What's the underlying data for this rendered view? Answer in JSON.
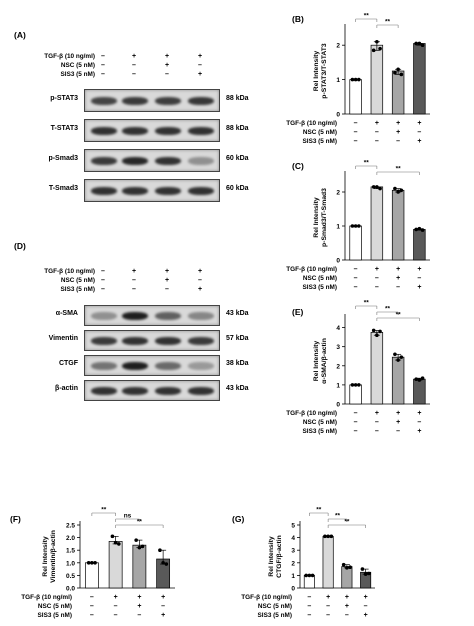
{
  "panels": {
    "A": {
      "label": "(A)",
      "treatments": [
        "TGF-β (10 ng/ml)",
        "NSC (5 nM)",
        "SIS3 (5 nM)"
      ],
      "signs": [
        [
          "–",
          "+",
          "+",
          "+"
        ],
        [
          "–",
          "–",
          "+",
          "–"
        ],
        [
          "–",
          "–",
          "–",
          "+"
        ]
      ],
      "blots": [
        {
          "name": "p-STAT3",
          "kda": "88 kDa",
          "intensity": [
            0.75,
            0.8,
            0.78,
            0.82
          ]
        },
        {
          "name": "T-STAT3",
          "kda": "88 kDa",
          "intensity": [
            0.85,
            0.85,
            0.85,
            0.85
          ]
        },
        {
          "name": "p-Smad3",
          "kda": "60 kDa",
          "intensity": [
            0.8,
            0.9,
            0.85,
            0.35
          ]
        },
        {
          "name": "T-Smad3",
          "kda": "60 kDa",
          "intensity": [
            0.85,
            0.85,
            0.85,
            0.85
          ]
        }
      ]
    },
    "D": {
      "label": "(D)",
      "treatments": [
        "TGF-β (10 ng/ml)",
        "NSC (5 nM)",
        "SIS3 (5 nM)"
      ],
      "signs": [
        [
          "–",
          "+",
          "+",
          "+"
        ],
        [
          "–",
          "–",
          "+",
          "–"
        ],
        [
          "–",
          "–",
          "–",
          "+"
        ]
      ],
      "blots": [
        {
          "name": "α-SMA",
          "kda": "43 kDa",
          "intensity": [
            0.35,
            0.95,
            0.6,
            0.4
          ]
        },
        {
          "name": "Vimentin",
          "kda": "57 kDa",
          "intensity": [
            0.8,
            0.85,
            0.85,
            0.8
          ]
        },
        {
          "name": "CTGF",
          "kda": "38 kDa",
          "intensity": [
            0.5,
            0.95,
            0.55,
            0.3
          ]
        },
        {
          "name": "β-actin",
          "kda": "43 kDa",
          "intensity": [
            0.85,
            0.85,
            0.85,
            0.85
          ]
        }
      ]
    }
  },
  "chart_data": [
    {
      "id": "B",
      "panel_label": "(B)",
      "type": "bar",
      "ylabel": "Rel Intensity\np-STAT3/T-STAT3",
      "ylim": [
        0,
        2.5
      ],
      "yticks": [
        "0",
        "1",
        "2"
      ],
      "values": [
        1.0,
        2.0,
        1.25,
        2.05
      ],
      "points": [
        [
          1,
          1,
          1
        ],
        [
          1.85,
          2.1,
          1.9
        ],
        [
          1.2,
          1.3,
          1.15
        ],
        [
          2.05,
          2.05,
          2.0
        ]
      ],
      "colors": [
        "#ffffff",
        "#d9d9d9",
        "#a6a6a6",
        "#595959"
      ],
      "sig": [
        {
          "from": 0,
          "to": 1,
          "label": "**"
        },
        {
          "from": 1,
          "to": 2,
          "label": "**"
        }
      ],
      "treatments": [
        "TGF-β (10 ng/ml)",
        "NSC (5 nM)",
        "SIS3 (5 nM)"
      ],
      "signs": [
        [
          "–",
          "+",
          "+",
          "+"
        ],
        [
          "–",
          "–",
          "+",
          "–"
        ],
        [
          "–",
          "–",
          "–",
          "+"
        ]
      ]
    },
    {
      "id": "C",
      "panel_label": "(C)",
      "type": "bar",
      "ylabel": "Rel Intensity\np-Smad3/T-Smad3",
      "ylim": [
        0,
        2.5
      ],
      "yticks": [
        "0",
        "1",
        "2"
      ],
      "values": [
        1.0,
        2.15,
        2.05,
        0.9
      ],
      "points": [
        [
          1,
          1,
          1
        ],
        [
          2.15,
          2.15,
          2.1
        ],
        [
          2.1,
          2.0,
          2.05
        ],
        [
          0.9,
          0.92,
          0.88
        ]
      ],
      "colors": [
        "#ffffff",
        "#d9d9d9",
        "#a6a6a6",
        "#595959"
      ],
      "sig": [
        {
          "from": 0,
          "to": 1,
          "label": "**"
        },
        {
          "from": 1,
          "to": 3,
          "label": "**"
        }
      ],
      "treatments": [
        "TGF-β (10 ng/ml)",
        "NSC (5 nM)",
        "SIS3 (5 nM)"
      ],
      "signs": [
        [
          "–",
          "+",
          "+",
          "+"
        ],
        [
          "–",
          "–",
          "+",
          "–"
        ],
        [
          "–",
          "–",
          "–",
          "+"
        ]
      ]
    },
    {
      "id": "E",
      "panel_label": "(E)",
      "type": "bar",
      "ylabel": "Rel Intensity\nα-SMA/β-actin",
      "ylim": [
        0,
        4.5
      ],
      "yticks": [
        "0",
        "1",
        "2",
        "3",
        "4"
      ],
      "values": [
        1.0,
        3.75,
        2.45,
        1.3
      ],
      "points": [
        [
          1,
          1,
          1
        ],
        [
          3.85,
          3.6,
          3.8
        ],
        [
          2.6,
          2.3,
          2.45
        ],
        [
          1.3,
          1.25,
          1.35
        ]
      ],
      "colors": [
        "#ffffff",
        "#d9d9d9",
        "#a6a6a6",
        "#595959"
      ],
      "sig": [
        {
          "from": 0,
          "to": 1,
          "label": "**"
        },
        {
          "from": 1,
          "to": 2,
          "label": "**"
        },
        {
          "from": 1,
          "to": 3,
          "label": "**"
        }
      ],
      "treatments": [
        "TGF-β (10 ng/ml)",
        "NSC (5 nM)",
        "SIS3 (5 nM)"
      ],
      "signs": [
        [
          "–",
          "+",
          "+",
          "+"
        ],
        [
          "–",
          "–",
          "+",
          "–"
        ],
        [
          "–",
          "–",
          "–",
          "+"
        ]
      ]
    },
    {
      "id": "F",
      "panel_label": "(F)",
      "type": "bar",
      "ylabel": "Rel Intensity\nVimentin/β-actin",
      "ylim": [
        0,
        2.5
      ],
      "yticks": [
        "0.0",
        "0.5",
        "1.0",
        "1.5",
        "2.0",
        "2.5"
      ],
      "values": [
        1.0,
        1.85,
        1.7,
        1.15
      ],
      "points": [
        [
          1,
          1,
          1
        ],
        [
          2.05,
          1.8,
          1.75
        ],
        [
          1.9,
          1.6,
          1.65
        ],
        [
          1.5,
          1.0,
          0.95
        ]
      ],
      "colors": [
        "#ffffff",
        "#d9d9d9",
        "#a6a6a6",
        "#595959"
      ],
      "sig": [
        {
          "from": 0,
          "to": 1,
          "label": "**"
        },
        {
          "from": 1,
          "to": 2,
          "label": "ns"
        },
        {
          "from": 1,
          "to": 3,
          "label": "**"
        }
      ],
      "treatments": [
        "TGF-β (10 ng/ml)",
        "NSC (5 nM)",
        "SIS3 (5 nM)"
      ],
      "signs": [
        [
          "–",
          "+",
          "+",
          "+"
        ],
        [
          "–",
          "–",
          "+",
          "–"
        ],
        [
          "–",
          "–",
          "–",
          "+"
        ]
      ]
    },
    {
      "id": "G",
      "panel_label": "(G)",
      "type": "bar",
      "ylabel": "Rel Intensity\nCTGF/β-actin",
      "ylim": [
        0,
        5
      ],
      "yticks": [
        "0",
        "1",
        "2",
        "3",
        "4",
        "5"
      ],
      "values": [
        1.0,
        4.1,
        1.7,
        1.25
      ],
      "points": [
        [
          1,
          1,
          1
        ],
        [
          4.1,
          4.1,
          4.1
        ],
        [
          1.85,
          1.6,
          1.65
        ],
        [
          1.5,
          1.1,
          1.15
        ]
      ],
      "colors": [
        "#ffffff",
        "#d9d9d9",
        "#a6a6a6",
        "#595959"
      ],
      "sig": [
        {
          "from": 0,
          "to": 1,
          "label": "**"
        },
        {
          "from": 1,
          "to": 2,
          "label": "**"
        },
        {
          "from": 1,
          "to": 3,
          "label": "**"
        }
      ],
      "treatments": [
        "TGF-β (10 ng/ml)",
        "NSC (5 nM)",
        "SIS3 (5 nM)"
      ],
      "signs": [
        [
          "–",
          "+",
          "+",
          "+"
        ],
        [
          "–",
          "–",
          "+",
          "–"
        ],
        [
          "–",
          "–",
          "–",
          "+"
        ]
      ]
    }
  ]
}
